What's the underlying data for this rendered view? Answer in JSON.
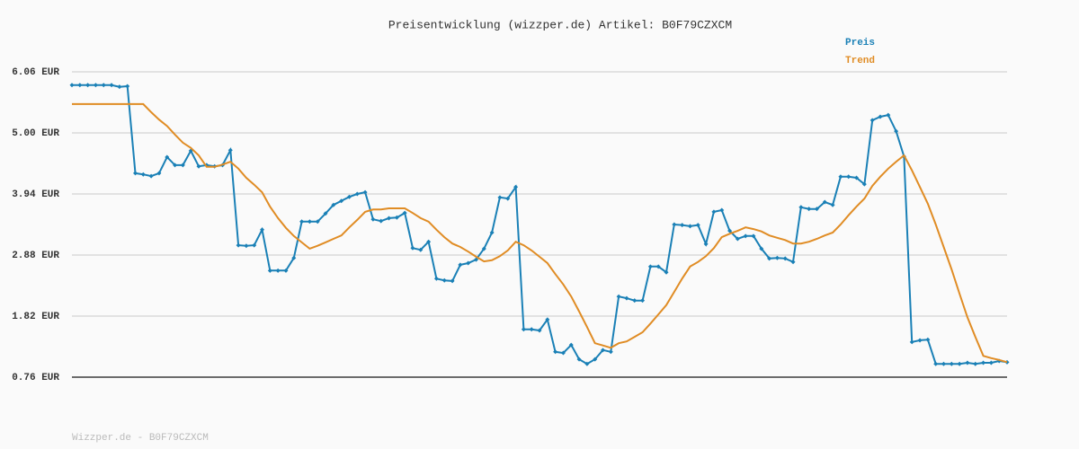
{
  "chart_data": {
    "type": "line",
    "title": "Preisentwicklung (wizzper.de) Artikel: B0F79CZXCM",
    "footer": "Wizzper.de - B0F79CZXCM",
    "categories": [
      null,
      null,
      null,
      null,
      null,
      null,
      null,
      null,
      null,
      null,
      null,
      null,
      null,
      null,
      null,
      null,
      null,
      null,
      null,
      null,
      null,
      null,
      null,
      null,
      null,
      null,
      null,
      null,
      null,
      null,
      null,
      null,
      null,
      null,
      null,
      null,
      null,
      null,
      null,
      null,
      null,
      null,
      null,
      null,
      null,
      null,
      null,
      null,
      null,
      null,
      null,
      null,
      null,
      null,
      null,
      null,
      null,
      null,
      null,
      null,
      null,
      null,
      null,
      null,
      null,
      null,
      null,
      null,
      null,
      null,
      null,
      null,
      null,
      null,
      null,
      null,
      null,
      null,
      null,
      null,
      null,
      null,
      null,
      null,
      null,
      null,
      null,
      null,
      null,
      null,
      null,
      null,
      null,
      null,
      null,
      null,
      null,
      null,
      null,
      null,
      null,
      null,
      null,
      null,
      null,
      null,
      null,
      null,
      null,
      null,
      null,
      null,
      null,
      null,
      null,
      null,
      null,
      null,
      null
    ],
    "series": [
      {
        "name": "Preis",
        "color": "#1a80b6",
        "markers": true,
        "values": [
          5.83,
          5.83,
          5.83,
          5.83,
          5.83,
          5.83,
          5.8,
          5.81,
          4.3,
          4.28,
          4.25,
          4.3,
          4.58,
          4.44,
          4.44,
          4.69,
          4.42,
          4.44,
          4.42,
          4.44,
          4.7,
          3.05,
          3.04,
          3.05,
          3.32,
          2.61,
          2.61,
          2.61,
          2.83,
          3.46,
          3.46,
          3.46,
          3.6,
          3.75,
          3.82,
          3.89,
          3.94,
          3.97,
          3.5,
          3.47,
          3.52,
          3.53,
          3.61,
          3.0,
          2.97,
          3.11,
          2.47,
          2.44,
          2.43,
          2.71,
          2.74,
          2.8,
          2.99,
          3.27,
          3.88,
          3.86,
          4.06,
          1.59,
          1.59,
          1.57,
          1.76,
          1.2,
          1.18,
          1.32,
          1.07,
          0.99,
          1.07,
          1.23,
          1.2,
          2.16,
          2.13,
          2.09,
          2.09,
          2.68,
          2.68,
          2.58,
          3.41,
          3.4,
          3.38,
          3.4,
          3.07,
          3.63,
          3.66,
          3.3,
          3.16,
          3.21,
          3.21,
          2.99,
          2.82,
          2.83,
          2.82,
          2.76,
          3.71,
          3.68,
          3.68,
          3.8,
          3.75,
          4.24,
          4.24,
          4.22,
          4.11,
          5.22,
          5.28,
          5.31,
          5.03,
          4.59,
          1.37,
          1.4,
          1.41,
          0.99,
          0.99,
          0.99,
          0.99,
          1.01,
          0.99,
          1.01,
          1.01,
          1.04,
          1.02
        ]
      },
      {
        "name": "Trend",
        "color": "#e08c24",
        "markers": false,
        "values": [
          5.5,
          5.5,
          5.5,
          5.5,
          5.5,
          5.5,
          5.5,
          5.5,
          5.5,
          5.5,
          5.36,
          5.23,
          5.12,
          4.97,
          4.83,
          4.74,
          4.61,
          4.41,
          4.41,
          4.45,
          4.5,
          4.38,
          4.22,
          4.1,
          3.97,
          3.72,
          3.52,
          3.35,
          3.21,
          3.1,
          2.99,
          3.04,
          3.1,
          3.16,
          3.22,
          3.36,
          3.49,
          3.63,
          3.67,
          3.67,
          3.69,
          3.69,
          3.69,
          3.61,
          3.52,
          3.46,
          3.32,
          3.19,
          3.08,
          3.02,
          2.94,
          2.85,
          2.77,
          2.79,
          2.86,
          2.96,
          3.11,
          3.05,
          2.96,
          2.85,
          2.74,
          2.55,
          2.37,
          2.16,
          1.9,
          1.63,
          1.35,
          1.31,
          1.27,
          1.35,
          1.38,
          1.46,
          1.54,
          1.69,
          1.85,
          2.01,
          2.24,
          2.47,
          2.68,
          2.76,
          2.86,
          3.0,
          3.19,
          3.25,
          3.3,
          3.36,
          3.33,
          3.29,
          3.22,
          3.18,
          3.14,
          3.08,
          3.08,
          3.11,
          3.16,
          3.22,
          3.27,
          3.41,
          3.57,
          3.72,
          3.86,
          4.08,
          4.24,
          4.38,
          4.5,
          4.61,
          4.35,
          4.06,
          3.77,
          3.41,
          3.02,
          2.63,
          2.21,
          1.8,
          1.46,
          1.13,
          1.09,
          1.06,
          1.02
        ]
      }
    ],
    "ylim": [
      0.76,
      6.06
    ],
    "yticks": [
      {
        "value": 0.76,
        "label": "0.76 EUR"
      },
      {
        "value": 1.82,
        "label": "1.82 EUR"
      },
      {
        "value": 2.88,
        "label": "2.88 EUR"
      },
      {
        "value": 3.94,
        "label": "3.94 EUR"
      },
      {
        "value": 5.0,
        "label": "5.00 EUR"
      },
      {
        "value": 6.06,
        "label": "6.06 EUR"
      }
    ],
    "grid": true
  }
}
